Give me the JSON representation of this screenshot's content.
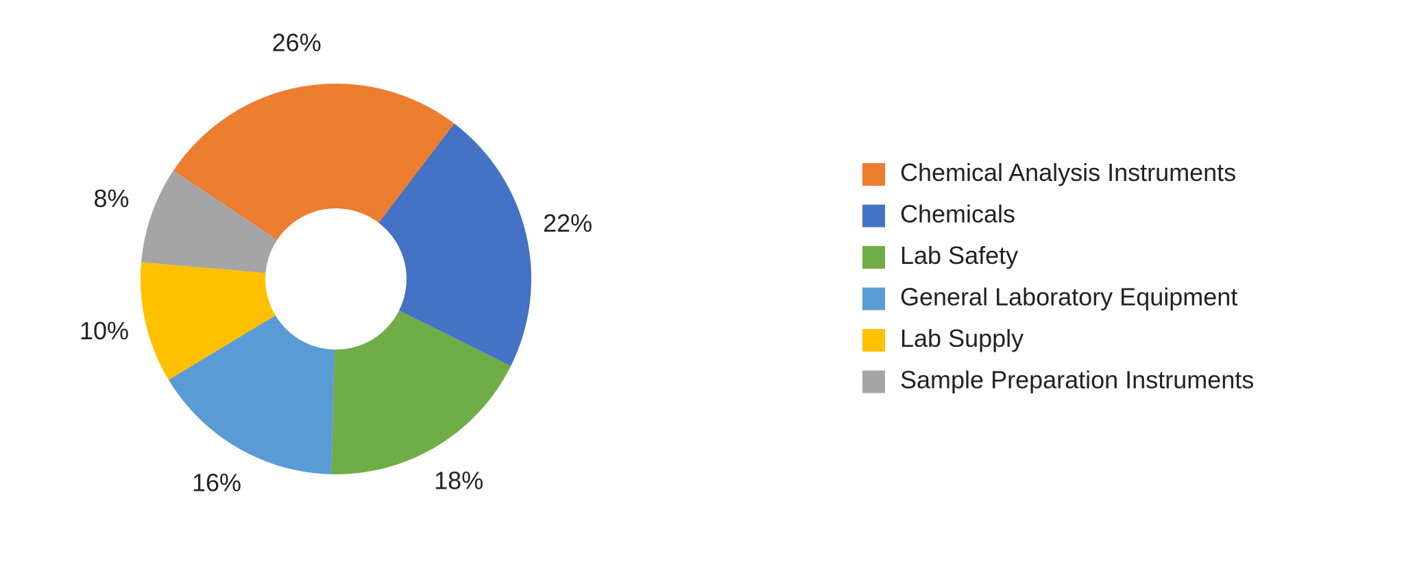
{
  "chart_data": {
    "type": "pie",
    "variant": "donut",
    "title": "",
    "legend_position": "right",
    "value_suffix": "%",
    "slices": [
      {
        "label": "Chemical Analysis Instruments",
        "value": 26,
        "color": "#ED7D31"
      },
      {
        "label": "Chemicals",
        "value": 22,
        "color": "#4472C4"
      },
      {
        "label": "Lab Safety",
        "value": 18,
        "color": "#70AD47"
      },
      {
        "label": "General Laboratory Equipment",
        "value": 16,
        "color": "#5B9BD5"
      },
      {
        "label": "Lab Supply",
        "value": 10,
        "color": "#FFC000"
      },
      {
        "label": "Sample Preparation Instruments",
        "value": 8,
        "color": "#A5A5A5"
      }
    ]
  }
}
